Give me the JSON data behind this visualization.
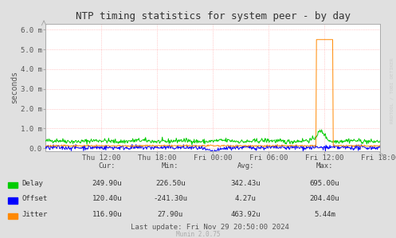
{
  "title": "NTP timing statistics for system peer - by day",
  "ylabel": "seconds",
  "bg_color": "#e0e0e0",
  "plot_bg_color": "#ffffff",
  "grid_color": "#ff9999",
  "ytick_vals": [
    0.0,
    0.001,
    0.002,
    0.003,
    0.004,
    0.005,
    0.006
  ],
  "ytick_labels": [
    "0.0",
    "1.0 m",
    "2.0 m",
    "3.0 m",
    "4.0 m",
    "5.0 m",
    "6.0 m"
  ],
  "ymax": 0.0063,
  "ymin": -0.00015,
  "xtick_labels": [
    "Thu 12:00",
    "Thu 18:00",
    "Fri 00:00",
    "Fri 06:00",
    "Fri 12:00",
    "Fri 18:00"
  ],
  "xtick_positions": [
    0.1667,
    0.3333,
    0.5,
    0.6667,
    0.8333,
    1.0
  ],
  "delay_color": "#00cc00",
  "offset_color": "#0000ff",
  "jitter_color": "#ff8800",
  "table_rows": [
    [
      "Delay",
      "249.90u",
      "226.50u",
      "342.43u",
      "695.00u"
    ],
    [
      "Offset",
      "120.40u",
      "-241.30u",
      "4.27u",
      "204.40u"
    ],
    [
      "Jitter",
      "116.90u",
      "27.90u",
      "463.92u",
      "5.44m"
    ]
  ],
  "last_update": "Last update: Fri Nov 29 20:50:00 2024",
  "munin_version": "Munin 2.0.75",
  "watermark": "RRDTOOL / TOBI OETIKER",
  "legend_colors": [
    "#00cc00",
    "#0000ff",
    "#ff8800"
  ],
  "legend_labels": [
    "Delay",
    "Offset",
    "Jitter"
  ]
}
